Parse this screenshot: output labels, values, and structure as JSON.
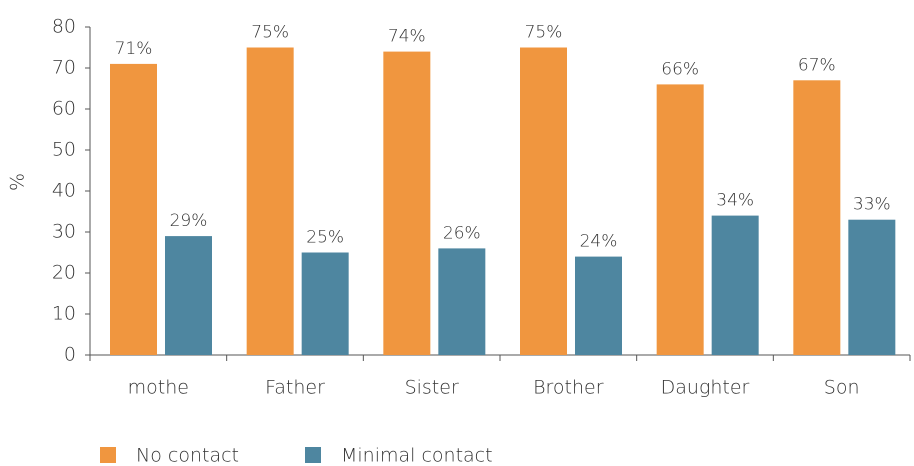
{
  "chart_data": {
    "type": "bar",
    "y_label": "%",
    "categories": [
      "mothe",
      "Father",
      "Sister",
      "Brother",
      "Daughter",
      "Son"
    ],
    "series": [
      {
        "name": "No contact",
        "color": "#f0963f",
        "values": [
          71,
          75,
          74,
          75,
          66,
          67
        ],
        "value_labels": [
          "71%",
          "75%",
          "74%",
          "75%",
          "66%",
          "67%"
        ]
      },
      {
        "name": "Minimal contact",
        "color": "#4e86a0",
        "values": [
          29,
          25,
          26,
          24,
          34,
          33
        ],
        "value_labels": [
          "29%",
          "25%",
          "26%",
          "24%",
          "34%",
          "33%"
        ]
      }
    ],
    "ylim": [
      0,
      80
    ],
    "yticks": [
      0,
      10,
      20,
      30,
      40,
      50,
      60,
      70,
      80
    ],
    "grid": false,
    "legend": "bottom"
  }
}
